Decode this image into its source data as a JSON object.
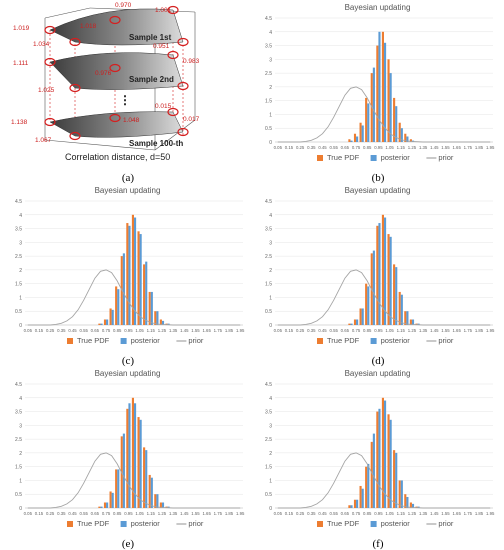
{
  "figure": {
    "panel_a": {
      "caption": "(a)",
      "values": [
        "0.970",
        "1.001",
        "1.019",
        "1.018",
        "1.034",
        "0.951",
        "1.111",
        "0.976",
        "0.983",
        "1.025",
        "1.138",
        "1.048",
        "0.015",
        "1.067",
        "0.017"
      ],
      "layer_labels": [
        "Sample 1st",
        "Sample 2nd",
        "Sample 100-th"
      ],
      "ellipsis": "⋮",
      "footer": "Correlation distance, d=50",
      "colors": {
        "marker": "#d42020",
        "text_red": "#cc1f1f",
        "surface_dark": "#4a4a4a",
        "surface_light": "#d0d0d0"
      }
    }
  },
  "chart_data": [
    {
      "panel": "b",
      "caption": "(b)",
      "type": "bar",
      "title": "Bayesian updating",
      "categories": [
        "0.05",
        "0.1",
        "0.15",
        "0.2",
        "0.25",
        "0.3",
        "0.35",
        "0.4",
        "0.45",
        "0.5",
        "0.55",
        "0.6",
        "0.65",
        "0.7",
        "0.75",
        "0.8",
        "0.85",
        "0.9",
        "0.95",
        "1",
        "1.05",
        "1.1",
        "1.15",
        "1.2",
        "1.25",
        "1.3",
        "1.35",
        "1.4",
        "1.45",
        "1.5",
        "1.55",
        "1.6",
        "1.65",
        "1.7",
        "1.75",
        "1.8",
        "1.85",
        "1.9",
        "1.95"
      ],
      "tick_labels": [
        "0.05",
        "0.15",
        "0.25",
        "0.35",
        "0.45",
        "0.55",
        "0.65",
        "0.75",
        "0.85",
        "0.95",
        "1.05",
        "1.15",
        "1.25",
        "1.35",
        "1.45",
        "1.55",
        "1.65",
        "1.75",
        "1.85",
        "1.95"
      ],
      "ylim": [
        0,
        4.5
      ],
      "yticks": [
        "0",
        "0.5",
        "1",
        "1.5",
        "2",
        "2.5",
        "3",
        "3.5",
        "4",
        "4.5"
      ],
      "series": [
        {
          "name": "True PDF",
          "type": "bar",
          "color": "#ed7d31",
          "values": [
            0,
            0,
            0,
            0,
            0,
            0,
            0,
            0,
            0,
            0,
            0,
            0,
            0,
            0.1,
            0.3,
            0.7,
            1.6,
            2.5,
            3.5,
            4.0,
            3.0,
            1.6,
            0.7,
            0.3,
            0.1,
            0,
            0,
            0,
            0,
            0,
            0,
            0,
            0,
            0,
            0,
            0,
            0,
            0,
            0
          ]
        },
        {
          "name": "posterior",
          "type": "bar",
          "color": "#5b9bd5",
          "values": [
            0,
            0,
            0,
            0,
            0,
            0,
            0,
            0,
            0,
            0,
            0,
            0,
            0,
            0.05,
            0.2,
            0.6,
            1.4,
            2.7,
            4.0,
            3.6,
            2.5,
            1.3,
            0.5,
            0.2,
            0.05,
            0,
            0,
            0,
            0,
            0,
            0,
            0,
            0,
            0,
            0,
            0,
            0,
            0,
            0
          ]
        },
        {
          "name": "prior",
          "type": "line",
          "color": "#a5a5a5",
          "values": [
            0,
            0,
            0,
            0,
            0,
            0.02,
            0.06,
            0.15,
            0.3,
            0.55,
            0.9,
            1.3,
            1.7,
            1.95,
            2.0,
            1.9,
            1.6,
            1.2,
            0.85,
            0.55,
            0.32,
            0.18,
            0.09,
            0.04,
            0.02,
            0.01,
            0,
            0,
            0,
            0,
            0,
            0,
            0,
            0,
            0,
            0,
            0,
            0,
            0
          ]
        }
      ],
      "legend": "bottom"
    },
    {
      "panel": "c",
      "caption": "(c)",
      "type": "bar",
      "title": "Bayesian updating",
      "categories": [
        "0.05",
        "0.1",
        "0.15",
        "0.2",
        "0.25",
        "0.3",
        "0.35",
        "0.4",
        "0.45",
        "0.5",
        "0.55",
        "0.6",
        "0.65",
        "0.7",
        "0.75",
        "0.8",
        "0.85",
        "0.9",
        "0.95",
        "1",
        "1.05",
        "1.1",
        "1.15",
        "1.2",
        "1.25",
        "1.3",
        "1.35",
        "1.4",
        "1.45",
        "1.5",
        "1.55",
        "1.6",
        "1.65",
        "1.7",
        "1.75",
        "1.8",
        "1.85",
        "1.9",
        "1.95"
      ],
      "tick_labels": [
        "0.05",
        "0.15",
        "0.25",
        "0.35",
        "0.45",
        "0.55",
        "0.65",
        "0.75",
        "0.85",
        "0.95",
        "1.05",
        "1.15",
        "1.25",
        "1.35",
        "1.45",
        "1.55",
        "1.65",
        "1.75",
        "1.85",
        "1.95"
      ],
      "ylim": [
        0,
        4.5
      ],
      "yticks": [
        "0",
        "0.5",
        "1",
        "1.5",
        "2",
        "2.5",
        "3",
        "3.5",
        "4",
        "4.5"
      ],
      "series": [
        {
          "name": "True PDF",
          "type": "bar",
          "color": "#ed7d31",
          "values": [
            0,
            0,
            0,
            0,
            0,
            0,
            0,
            0,
            0,
            0,
            0,
            0,
            0,
            0.05,
            0.2,
            0.6,
            1.4,
            2.5,
            3.7,
            4.0,
            3.4,
            2.2,
            1.2,
            0.5,
            0.2,
            0.05,
            0,
            0,
            0,
            0,
            0,
            0,
            0,
            0,
            0,
            0,
            0,
            0,
            0
          ]
        },
        {
          "name": "posterior",
          "type": "bar",
          "color": "#5b9bd5",
          "values": [
            0,
            0,
            0,
            0,
            0,
            0,
            0,
            0,
            0,
            0,
            0,
            0,
            0,
            0.05,
            0.2,
            0.55,
            1.3,
            2.6,
            3.6,
            3.9,
            3.3,
            2.3,
            1.2,
            0.5,
            0.15,
            0.05,
            0,
            0,
            0,
            0,
            0,
            0,
            0,
            0,
            0,
            0,
            0,
            0,
            0
          ]
        },
        {
          "name": "prior",
          "type": "line",
          "color": "#a5a5a5",
          "values": [
            0,
            0,
            0,
            0,
            0,
            0.02,
            0.06,
            0.15,
            0.3,
            0.55,
            0.9,
            1.3,
            1.7,
            1.95,
            2.0,
            1.9,
            1.6,
            1.2,
            0.85,
            0.55,
            0.32,
            0.18,
            0.09,
            0.04,
            0.02,
            0.01,
            0,
            0,
            0,
            0,
            0,
            0,
            0,
            0,
            0,
            0,
            0,
            0,
            0
          ]
        }
      ],
      "legend": "bottom"
    },
    {
      "panel": "d",
      "caption": "(d)",
      "type": "bar",
      "title": "Bayesian updating",
      "categories": [
        "0.05",
        "0.1",
        "0.15",
        "0.2",
        "0.25",
        "0.3",
        "0.35",
        "0.4",
        "0.45",
        "0.5",
        "0.55",
        "0.6",
        "0.65",
        "0.7",
        "0.75",
        "0.8",
        "0.85",
        "0.9",
        "0.95",
        "1",
        "1.05",
        "1.1",
        "1.15",
        "1.2",
        "1.25",
        "1.3",
        "1.35",
        "1.4",
        "1.45",
        "1.5",
        "1.55",
        "1.6",
        "1.65",
        "1.7",
        "1.75",
        "1.8",
        "1.85",
        "1.9",
        "1.95"
      ],
      "tick_labels": [
        "0.05",
        "0.15",
        "0.25",
        "0.35",
        "0.45",
        "0.55",
        "0.65",
        "0.75",
        "0.85",
        "0.95",
        "1.05",
        "1.15",
        "1.25",
        "1.35",
        "1.45",
        "1.55",
        "1.65",
        "1.75",
        "1.85",
        "1.95"
      ],
      "ylim": [
        0,
        4.5
      ],
      "yticks": [
        "0",
        "0.5",
        "1",
        "1.5",
        "2",
        "2.5",
        "3",
        "3.5",
        "4",
        "4.5"
      ],
      "series": [
        {
          "name": "True PDF",
          "type": "bar",
          "color": "#ed7d31",
          "values": [
            0,
            0,
            0,
            0,
            0,
            0,
            0,
            0,
            0,
            0,
            0,
            0,
            0,
            0.05,
            0.2,
            0.6,
            1.5,
            2.6,
            3.6,
            4.0,
            3.3,
            2.2,
            1.2,
            0.5,
            0.2,
            0.05,
            0,
            0,
            0,
            0,
            0,
            0,
            0,
            0,
            0,
            0,
            0,
            0,
            0
          ]
        },
        {
          "name": "posterior",
          "type": "bar",
          "color": "#5b9bd5",
          "values": [
            0,
            0,
            0,
            0,
            0,
            0,
            0,
            0,
            0,
            0,
            0,
            0,
            0,
            0.05,
            0.2,
            0.6,
            1.4,
            2.7,
            3.7,
            3.9,
            3.2,
            2.1,
            1.1,
            0.5,
            0.2,
            0.05,
            0,
            0,
            0,
            0,
            0,
            0,
            0,
            0,
            0,
            0,
            0,
            0,
            0
          ]
        },
        {
          "name": "prior",
          "type": "line",
          "color": "#a5a5a5",
          "values": [
            0,
            0,
            0,
            0,
            0,
            0.02,
            0.06,
            0.15,
            0.3,
            0.55,
            0.9,
            1.3,
            1.7,
            1.95,
            2.0,
            1.9,
            1.6,
            1.2,
            0.85,
            0.55,
            0.32,
            0.18,
            0.09,
            0.04,
            0.02,
            0.01,
            0,
            0,
            0,
            0,
            0,
            0,
            0,
            0,
            0,
            0,
            0,
            0,
            0
          ]
        }
      ],
      "legend": "bottom"
    },
    {
      "panel": "e",
      "caption": "(e)",
      "type": "bar",
      "title": "Bayesian updating",
      "categories": [
        "0.05",
        "0.1",
        "0.15",
        "0.2",
        "0.25",
        "0.3",
        "0.35",
        "0.4",
        "0.45",
        "0.5",
        "0.55",
        "0.6",
        "0.65",
        "0.7",
        "0.75",
        "0.8",
        "0.85",
        "0.9",
        "0.95",
        "1",
        "1.05",
        "1.1",
        "1.15",
        "1.2",
        "1.25",
        "1.3",
        "1.35",
        "1.4",
        "1.45",
        "1.5",
        "1.55",
        "1.6",
        "1.65",
        "1.7",
        "1.75",
        "1.8",
        "1.85",
        "1.9",
        "1.95"
      ],
      "tick_labels": [
        "0.05",
        "0.15",
        "0.25",
        "0.35",
        "0.45",
        "0.55",
        "0.65",
        "0.75",
        "0.85",
        "0.95",
        "1.05",
        "1.15",
        "1.25",
        "1.35",
        "1.45",
        "1.55",
        "1.65",
        "1.75",
        "1.85",
        "1.95"
      ],
      "ylim": [
        0,
        4.5
      ],
      "yticks": [
        "0",
        "0.5",
        "1",
        "1.5",
        "2",
        "2.5",
        "3",
        "3.5",
        "4",
        "4.5"
      ],
      "series": [
        {
          "name": "True PDF",
          "type": "bar",
          "color": "#ed7d31",
          "values": [
            0,
            0,
            0,
            0,
            0,
            0,
            0,
            0,
            0,
            0,
            0,
            0,
            0,
            0.05,
            0.2,
            0.6,
            1.4,
            2.6,
            3.6,
            4.0,
            3.3,
            2.2,
            1.2,
            0.5,
            0.2,
            0.05,
            0,
            0,
            0,
            0,
            0,
            0,
            0,
            0,
            0,
            0,
            0,
            0,
            0
          ]
        },
        {
          "name": "posterior",
          "type": "bar",
          "color": "#5b9bd5",
          "values": [
            0,
            0,
            0,
            0,
            0,
            0,
            0,
            0,
            0,
            0,
            0,
            0,
            0,
            0.05,
            0.2,
            0.55,
            1.4,
            2.7,
            3.8,
            3.8,
            3.2,
            2.1,
            1.1,
            0.5,
            0.2,
            0.05,
            0,
            0,
            0,
            0,
            0,
            0,
            0,
            0,
            0,
            0,
            0,
            0,
            0
          ]
        },
        {
          "name": "prior",
          "type": "line",
          "color": "#a5a5a5",
          "values": [
            0,
            0,
            0,
            0,
            0,
            0.02,
            0.06,
            0.15,
            0.3,
            0.55,
            0.9,
            1.3,
            1.7,
            1.95,
            2.0,
            1.9,
            1.6,
            1.2,
            0.85,
            0.55,
            0.32,
            0.18,
            0.09,
            0.04,
            0.02,
            0.01,
            0,
            0,
            0,
            0,
            0,
            0,
            0,
            0,
            0,
            0,
            0,
            0,
            0
          ]
        }
      ],
      "legend": "bottom"
    },
    {
      "panel": "f",
      "caption": "(f)",
      "type": "bar",
      "title": "Bayesian updating",
      "categories": [
        "0.05",
        "0.1",
        "0.15",
        "0.2",
        "0.25",
        "0.3",
        "0.35",
        "0.4",
        "0.45",
        "0.5",
        "0.55",
        "0.6",
        "0.65",
        "0.7",
        "0.75",
        "0.8",
        "0.85",
        "0.9",
        "0.95",
        "1",
        "1.05",
        "1.1",
        "1.15",
        "1.2",
        "1.25",
        "1.3",
        "1.35",
        "1.4",
        "1.45",
        "1.5",
        "1.55",
        "1.6",
        "1.65",
        "1.7",
        "1.75",
        "1.8",
        "1.85",
        "1.9",
        "1.95"
      ],
      "tick_labels": [
        "0.05",
        "0.15",
        "0.25",
        "0.35",
        "0.45",
        "0.55",
        "0.65",
        "0.75",
        "0.85",
        "0.95",
        "1.05",
        "1.15",
        "1.25",
        "1.35",
        "1.45",
        "1.55",
        "1.65",
        "1.75",
        "1.85",
        "1.95"
      ],
      "ylim": [
        0,
        4.5
      ],
      "yticks": [
        "0",
        "0.5",
        "1",
        "1.5",
        "2",
        "2.5",
        "3",
        "3.5",
        "4",
        "4.5"
      ],
      "series": [
        {
          "name": "True PDF",
          "type": "bar",
          "color": "#ed7d31",
          "values": [
            0,
            0,
            0,
            0,
            0,
            0,
            0,
            0,
            0,
            0,
            0,
            0,
            0,
            0.1,
            0.3,
            0.8,
            1.5,
            2.4,
            3.5,
            4.0,
            3.4,
            2.1,
            1.0,
            0.5,
            0.2,
            0.05,
            0,
            0,
            0,
            0,
            0,
            0,
            0,
            0,
            0,
            0,
            0,
            0,
            0
          ]
        },
        {
          "name": "posterior",
          "type": "bar",
          "color": "#5b9bd5",
          "values": [
            0,
            0,
            0,
            0,
            0,
            0,
            0,
            0,
            0,
            0,
            0,
            0,
            0,
            0.1,
            0.3,
            0.7,
            1.6,
            2.7,
            3.6,
            3.9,
            3.2,
            2.0,
            1.0,
            0.4,
            0.15,
            0.05,
            0,
            0,
            0,
            0,
            0,
            0,
            0,
            0,
            0,
            0,
            0,
            0,
            0
          ]
        },
        {
          "name": "prior",
          "type": "line",
          "color": "#a5a5a5",
          "values": [
            0,
            0,
            0,
            0,
            0,
            0.02,
            0.06,
            0.15,
            0.3,
            0.55,
            0.9,
            1.3,
            1.7,
            1.95,
            2.0,
            1.9,
            1.6,
            1.2,
            0.85,
            0.55,
            0.32,
            0.18,
            0.09,
            0.04,
            0.02,
            0.01,
            0,
            0,
            0,
            0,
            0,
            0,
            0,
            0,
            0,
            0,
            0,
            0,
            0
          ]
        }
      ],
      "legend": "bottom"
    }
  ]
}
